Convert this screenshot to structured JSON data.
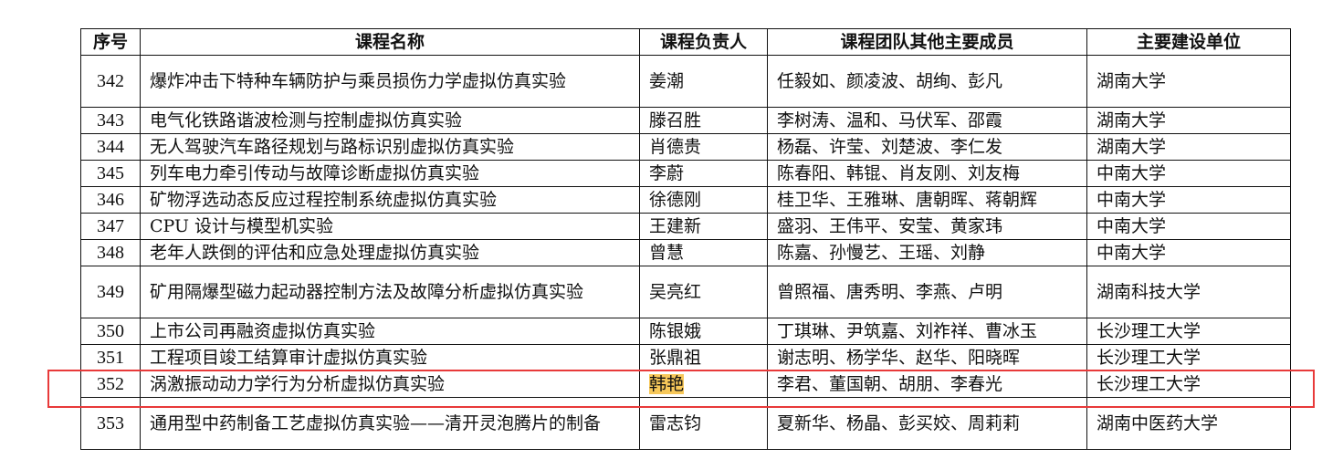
{
  "headers": [
    "序号",
    "课程名称",
    "课程负责人",
    "课程团队其他主要成员",
    "主要建设单位"
  ],
  "rows": [
    {
      "no": "342",
      "course": "爆炸冲击下特种车辆防护与乘员损伤力学虚拟仿真实验",
      "lead": "姜潮",
      "members": "任毅如、颜凌波、胡绚、彭凡",
      "unit": "湖南大学"
    },
    {
      "no": "343",
      "course": "电气化铁路谐波检测与控制虚拟仿真实验",
      "lead": "滕召胜",
      "members": "李树涛、温和、马伏军、邵霞",
      "unit": "湖南大学"
    },
    {
      "no": "344",
      "course": "无人驾驶汽车路径规划与路标识别虚拟仿真实验",
      "lead": "肖德贵",
      "members": "杨磊、许莹、刘楚波、李仁发",
      "unit": "湖南大学"
    },
    {
      "no": "345",
      "course": "列车电力牵引传动与故障诊断虚拟仿真实验",
      "lead": "李蔚",
      "members": "陈春阳、韩锟、肖友刚、刘友梅",
      "unit": "中南大学"
    },
    {
      "no": "346",
      "course": "矿物浮选动态反应过程控制系统虚拟仿真实验",
      "lead": "徐德刚",
      "members": "桂卫华、王雅琳、唐朝晖、蒋朝辉",
      "unit": "中南大学"
    },
    {
      "no": "347",
      "course": "CPU 设计与模型机实验",
      "lead": "王建新",
      "members": "盛羽、王伟平、安莹、黄家玮",
      "unit": "中南大学"
    },
    {
      "no": "348",
      "course": "老年人跌倒的评估和应急处理虚拟仿真实验",
      "lead": "曾慧",
      "members": "陈嘉、孙慢艺、王瑶、刘静",
      "unit": "中南大学"
    },
    {
      "no": "349",
      "course": "矿用隔爆型磁力起动器控制方法及故障分析虚拟仿真实验",
      "lead": "吴亮红",
      "members": "曾照福、唐秀明、李燕、卢明",
      "unit": "湖南科技大学"
    },
    {
      "no": "350",
      "course": "上市公司再融资虚拟仿真实验",
      "lead": "陈银娥",
      "members": "丁琪琳、尹筑嘉、刘祚祥、曹冰玉",
      "unit": "长沙理工大学"
    },
    {
      "no": "351",
      "course": "工程项目竣工结算审计虚拟仿真实验",
      "lead": "张鼎祖",
      "members": "谢志明、杨学华、赵华、阳晓晖",
      "unit": "长沙理工大学"
    },
    {
      "no": "352",
      "course": "涡激振动动力学行为分析虚拟仿真实验",
      "lead": "韩艳",
      "members": "李君、董国朝、胡朋、李春光",
      "unit": "长沙理工大学"
    },
    {
      "no": "353",
      "course": "通用型中药制备工艺虚拟仿真实验——清开灵泡腾片的制备",
      "lead": "雷志钧",
      "members": "夏新华、杨晶、彭买姣、周莉莉",
      "unit": "湖南中医药大学"
    }
  ],
  "highlight": {
    "row": "352",
    "lead_highlight_color": "#f7c85a",
    "box_color": "#e83a3a"
  }
}
